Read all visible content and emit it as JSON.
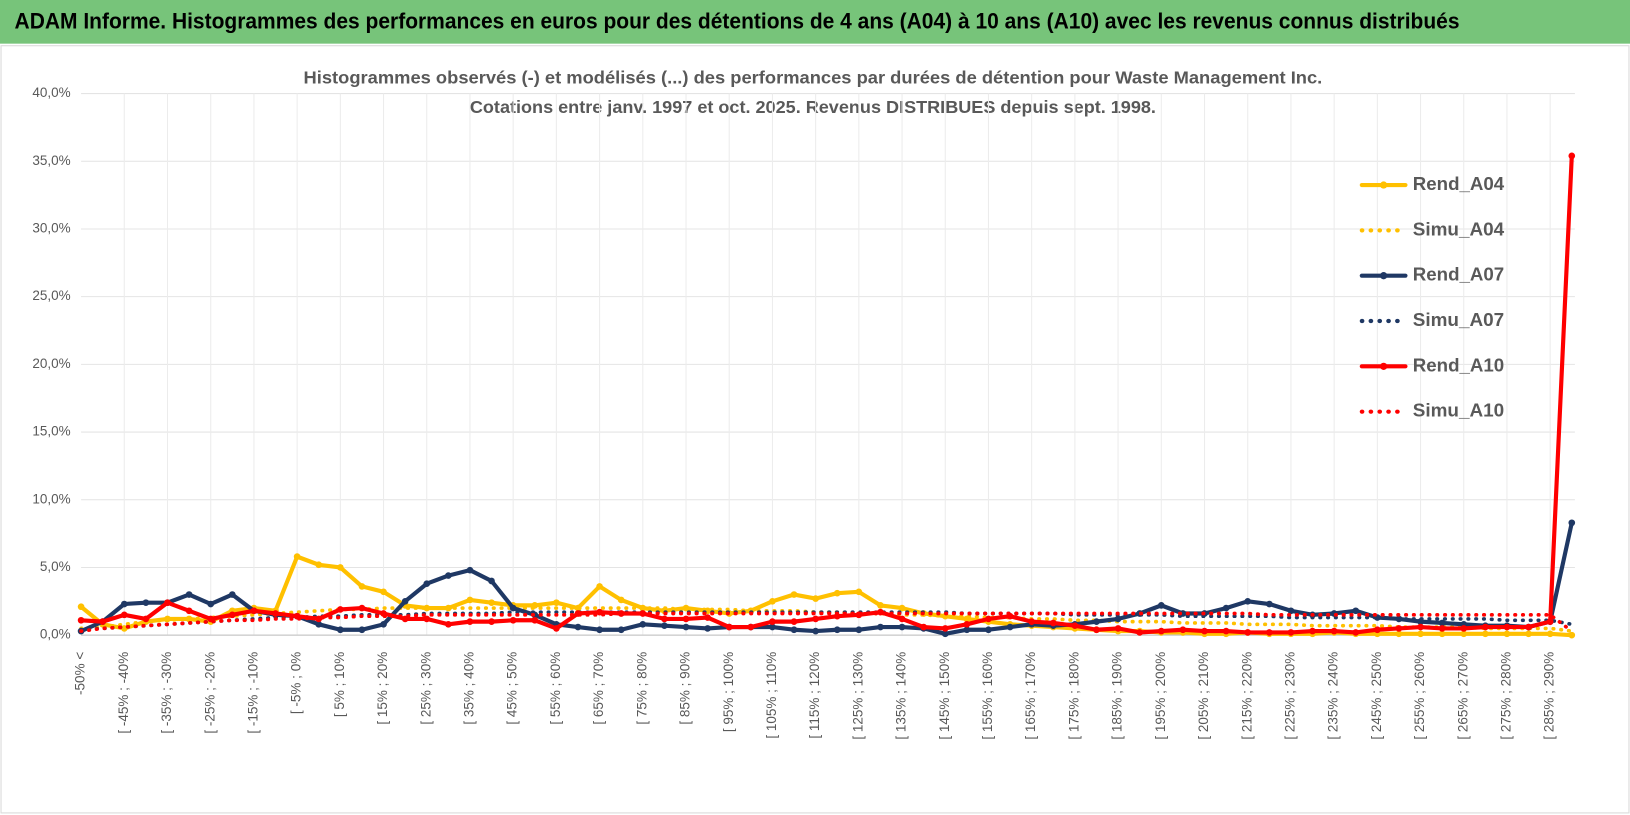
{
  "chart_data": {
    "type": "line",
    "title": "ADAM Informe. Histogrammes des performances en euros pour des détentions de 4 ans (A04) à 10 ans (A10) avec les revenus connus distribués",
    "subtitle": [
      "Histogrammes observés (-) et modélisés (...) des performances par durées de détention pour Waste Management Inc.",
      "Cotations entre janv. 1997 et oct. 2025.  Revenus DISTRIBUES depuis sept. 1998."
    ],
    "categories": [
      "-50% <",
      null,
      "[ -45% ; -40%",
      null,
      "[ -35% ; -30%",
      null,
      "[ -25% ; -20%",
      null,
      "[ -15% ; -10%",
      null,
      "[ -5% ; 0%",
      null,
      "[ 5% ; 10%",
      null,
      "[ 15% ; 20%",
      null,
      "[ 25% ; 30%",
      null,
      "[ 35% ; 40%",
      null,
      "[ 45% ; 50%",
      null,
      "[ 55% ; 60%",
      null,
      "[ 65% ; 70%",
      null,
      "[ 75% ; 80%",
      null,
      "[ 85% ; 90%",
      null,
      "[ 95% ; 100%",
      null,
      "[ 105% ; 110%",
      null,
      "[ 115% ; 120%",
      null,
      "[ 125% ; 130%",
      null,
      "[ 135% ; 140%",
      null,
      "[ 145% ; 150%",
      null,
      "[ 155% ; 160%",
      null,
      "[ 165% ; 170%",
      null,
      "[ 175% ; 180%",
      null,
      "[ 185% ; 190%",
      null,
      "[ 195% ; 200%",
      null,
      "[ 205% ; 210%",
      null,
      "[ 215% ; 220%",
      null,
      "[ 225% ; 230%",
      null,
      "[ 235% ; 240%",
      null,
      "[ 245% ; 250%",
      null,
      "[ 255% ; 260%",
      null,
      "[ 265% ; 270%",
      null,
      "[ 275% ; 280%",
      null,
      "[ 285% ; 290%",
      null
    ],
    "series": [
      {
        "name": "Rend_A04",
        "color": "#ffc000",
        "dotted": false,
        "markers": true,
        "values": [
          2.1,
          0.8,
          0.5,
          1.0,
          1.2,
          1.2,
          1.0,
          1.8,
          2.0,
          1.8,
          5.8,
          5.2,
          5.0,
          3.6,
          3.2,
          2.2,
          2.0,
          2.0,
          2.6,
          2.4,
          2.2,
          2.2,
          2.4,
          2.0,
          3.6,
          2.6,
          2.0,
          1.8,
          2.0,
          1.8,
          1.6,
          1.8,
          2.5,
          3.0,
          2.7,
          3.1,
          3.2,
          2.2,
          2.0,
          1.6,
          1.4,
          1.2,
          1.0,
          0.8,
          0.7,
          0.6,
          0.5,
          0.4,
          0.3,
          0.3,
          0.2,
          0.2,
          0.1,
          0.1,
          0.2,
          0.1,
          0.1,
          0.1,
          0.2,
          0.1,
          0.1,
          0.1,
          0.1,
          0.1,
          0.1,
          0.1,
          0.1,
          0.1,
          0.1,
          0.0
        ]
      },
      {
        "name": "Simu_A04",
        "color": "#ffc000",
        "dotted": true,
        "markers": false,
        "values": [
          0.5,
          0.6,
          0.8,
          1.0,
          1.1,
          1.2,
          1.3,
          1.4,
          1.5,
          1.6,
          1.7,
          1.8,
          1.9,
          1.9,
          2.0,
          2.0,
          2.0,
          2.0,
          2.0,
          2.0,
          2.0,
          2.0,
          2.0,
          2.0,
          2.0,
          2.0,
          2.0,
          2.0,
          1.9,
          1.9,
          1.9,
          1.8,
          1.8,
          1.8,
          1.7,
          1.7,
          1.6,
          1.6,
          1.5,
          1.5,
          1.4,
          1.4,
          1.3,
          1.3,
          1.2,
          1.2,
          1.1,
          1.1,
          1.0,
          1.0,
          1.0,
          0.9,
          0.9,
          0.9,
          0.8,
          0.8,
          0.8,
          0.7,
          0.7,
          0.7,
          0.7,
          0.6,
          0.6,
          0.6,
          0.6,
          0.5,
          0.5,
          0.5,
          0.5,
          0.3
        ]
      },
      {
        "name": "Rend_A07",
        "color": "#1f3864",
        "dotted": false,
        "markers": true,
        "values": [
          0.3,
          1.0,
          2.3,
          2.4,
          2.4,
          3.0,
          2.3,
          3.0,
          1.8,
          1.5,
          1.4,
          0.8,
          0.4,
          0.4,
          0.8,
          2.5,
          3.8,
          4.4,
          4.8,
          4.0,
          2.0,
          1.5,
          0.8,
          0.6,
          0.4,
          0.4,
          0.8,
          0.7,
          0.6,
          0.5,
          0.6,
          0.6,
          0.6,
          0.4,
          0.3,
          0.4,
          0.4,
          0.6,
          0.6,
          0.5,
          0.1,
          0.4,
          0.4,
          0.6,
          0.8,
          0.7,
          0.8,
          1.0,
          1.2,
          1.6,
          2.2,
          1.6,
          1.6,
          2.0,
          2.5,
          2.3,
          1.8,
          1.5,
          1.6,
          1.8,
          1.3,
          1.2,
          1.0,
          0.9,
          0.8,
          0.7,
          0.7,
          0.6,
          1.0,
          8.3
        ]
      },
      {
        "name": "Simu_A07",
        "color": "#1f3864",
        "dotted": true,
        "markers": false,
        "values": [
          0.4,
          0.5,
          0.6,
          0.7,
          0.8,
          0.9,
          1.0,
          1.1,
          1.2,
          1.3,
          1.3,
          1.4,
          1.4,
          1.5,
          1.5,
          1.5,
          1.6,
          1.6,
          1.6,
          1.6,
          1.7,
          1.7,
          1.7,
          1.7,
          1.7,
          1.7,
          1.7,
          1.7,
          1.7,
          1.7,
          1.7,
          1.7,
          1.7,
          1.7,
          1.7,
          1.7,
          1.7,
          1.7,
          1.7,
          1.7,
          1.7,
          1.6,
          1.6,
          1.6,
          1.6,
          1.6,
          1.5,
          1.5,
          1.5,
          1.5,
          1.5,
          1.4,
          1.4,
          1.4,
          1.4,
          1.4,
          1.3,
          1.3,
          1.3,
          1.3,
          1.3,
          1.2,
          1.2,
          1.2,
          1.2,
          1.2,
          1.1,
          1.1,
          1.1,
          0.8
        ]
      },
      {
        "name": "Rend_A10",
        "color": "#ff0000",
        "dotted": false,
        "markers": true,
        "values": [
          1.1,
          1.0,
          1.5,
          1.2,
          2.4,
          1.8,
          1.2,
          1.5,
          1.8,
          1.6,
          1.4,
          1.2,
          1.9,
          2.0,
          1.6,
          1.2,
          1.2,
          0.8,
          1.0,
          1.0,
          1.1,
          1.1,
          0.5,
          1.6,
          1.7,
          1.6,
          1.6,
          1.2,
          1.2,
          1.3,
          0.6,
          0.6,
          1.0,
          1.0,
          1.2,
          1.4,
          1.5,
          1.7,
          1.2,
          0.6,
          0.5,
          0.8,
          1.2,
          1.4,
          1.0,
          0.9,
          0.7,
          0.4,
          0.5,
          0.2,
          0.3,
          0.4,
          0.3,
          0.3,
          0.2,
          0.2,
          0.2,
          0.3,
          0.3,
          0.2,
          0.4,
          0.5,
          0.6,
          0.5,
          0.5,
          0.6,
          0.6,
          0.6,
          1.0,
          35.4
        ]
      },
      {
        "name": "Simu_A10",
        "color": "#ff0000",
        "dotted": true,
        "markers": false,
        "values": [
          0.3,
          0.5,
          0.6,
          0.7,
          0.8,
          0.9,
          1.0,
          1.1,
          1.1,
          1.2,
          1.2,
          1.3,
          1.3,
          1.4,
          1.4,
          1.4,
          1.5,
          1.5,
          1.5,
          1.5,
          1.5,
          1.5,
          1.5,
          1.5,
          1.5,
          1.6,
          1.6,
          1.6,
          1.6,
          1.6,
          1.6,
          1.6,
          1.6,
          1.6,
          1.6,
          1.6,
          1.6,
          1.6,
          1.6,
          1.6,
          1.6,
          1.6,
          1.6,
          1.6,
          1.6,
          1.6,
          1.6,
          1.6,
          1.6,
          1.6,
          1.6,
          1.6,
          1.6,
          1.6,
          1.6,
          1.5,
          1.5,
          1.5,
          1.5,
          1.5,
          1.5,
          1.5,
          1.5,
          1.5,
          1.5,
          1.5,
          1.5,
          1.5,
          1.5,
          0.3
        ]
      }
    ],
    "ylim": [
      0,
      40
    ],
    "yticks": [
      {
        "value": 0,
        "label": "0,0%"
      },
      {
        "value": 5,
        "label": "5,0%"
      },
      {
        "value": 10,
        "label": "10,0%"
      },
      {
        "value": 15,
        "label": "15,0%"
      },
      {
        "value": 20,
        "label": "20,0%"
      },
      {
        "value": 25,
        "label": "25,0%"
      },
      {
        "value": 30,
        "label": "30,0%"
      },
      {
        "value": 35,
        "label": "35,0%"
      },
      {
        "value": 40,
        "label": "40,0%"
      }
    ],
    "grid": true,
    "legend": "right"
  }
}
